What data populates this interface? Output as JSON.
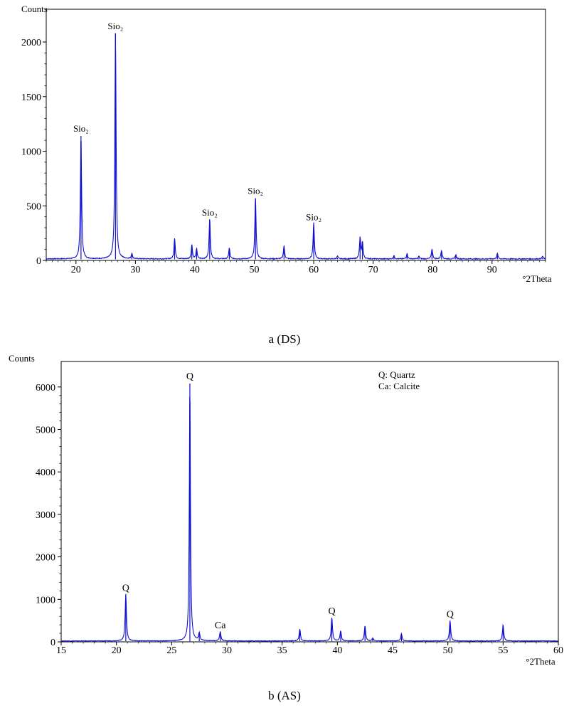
{
  "chart_data": [
    {
      "type": "line",
      "ylabel": "Counts",
      "xlabel": "°2Theta",
      "caption": "a (DS)",
      "xlim": [
        15,
        99
      ],
      "ylim": [
        0,
        2300
      ],
      "xticks": [
        20,
        30,
        40,
        50,
        60,
        70,
        80,
        90
      ],
      "yticks": [
        0,
        500,
        1000,
        1500,
        2000
      ],
      "color": "#1010d0",
      "baseline": 10,
      "peaks": [
        {
          "x": 20.85,
          "y": 1140,
          "w": 0.12
        },
        {
          "x": 26.65,
          "y": 2080,
          "w": 0.12
        },
        {
          "x": 29.4,
          "y": 50,
          "w": 0.12
        },
        {
          "x": 36.6,
          "y": 190,
          "w": 0.12
        },
        {
          "x": 39.5,
          "y": 130,
          "w": 0.12
        },
        {
          "x": 40.3,
          "y": 90,
          "w": 0.12
        },
        {
          "x": 42.5,
          "y": 370,
          "w": 0.12
        },
        {
          "x": 45.8,
          "y": 100,
          "w": 0.12
        },
        {
          "x": 50.2,
          "y": 570,
          "w": 0.12
        },
        {
          "x": 55.0,
          "y": 120,
          "w": 0.12
        },
        {
          "x": 60.0,
          "y": 330,
          "w": 0.12
        },
        {
          "x": 64.0,
          "y": 25,
          "w": 0.12
        },
        {
          "x": 67.8,
          "y": 190,
          "w": 0.12
        },
        {
          "x": 68.2,
          "y": 150,
          "w": 0.12
        },
        {
          "x": 73.5,
          "y": 30,
          "w": 0.12
        },
        {
          "x": 75.7,
          "y": 50,
          "w": 0.12
        },
        {
          "x": 77.7,
          "y": 25,
          "w": 0.12
        },
        {
          "x": 79.9,
          "y": 90,
          "w": 0.12
        },
        {
          "x": 81.5,
          "y": 80,
          "w": 0.12
        },
        {
          "x": 83.9,
          "y": 40,
          "w": 0.12
        },
        {
          "x": 90.9,
          "y": 50,
          "w": 0.12
        },
        {
          "x": 98.5,
          "y": 25,
          "w": 0.12
        }
      ],
      "annotations": [
        {
          "text": "Sio₂",
          "x": 20.85,
          "y": 1140
        },
        {
          "text": "Sio₂",
          "x": 26.65,
          "y": 2080
        },
        {
          "text": "Sio₂",
          "x": 42.5,
          "y": 370
        },
        {
          "text": "Sio₂",
          "x": 50.2,
          "y": 570
        },
        {
          "text": "Sio₂",
          "x": 60.0,
          "y": 330
        }
      ]
    },
    {
      "type": "line",
      "ylabel": "Counts",
      "xlabel": "°2Theta",
      "caption": "b (AS)",
      "xlim": [
        15,
        60
      ],
      "ylim": [
        0,
        6600
      ],
      "xticks": [
        15,
        20,
        25,
        30,
        35,
        40,
        45,
        50,
        55,
        60
      ],
      "yticks": [
        0,
        1000,
        2000,
        3000,
        4000,
        5000,
        6000
      ],
      "color": "#1010d0",
      "baseline": 15,
      "legend": [
        "Q: Quartz",
        "Ca: Calcite"
      ],
      "legend_position": "top-right",
      "peaks": [
        {
          "x": 20.85,
          "y": 1100,
          "w": 0.07
        },
        {
          "x": 26.65,
          "y": 6080,
          "w": 0.06
        },
        {
          "x": 27.5,
          "y": 180,
          "w": 0.07
        },
        {
          "x": 29.4,
          "y": 220,
          "w": 0.07
        },
        {
          "x": 36.6,
          "y": 280,
          "w": 0.07
        },
        {
          "x": 39.5,
          "y": 550,
          "w": 0.07
        },
        {
          "x": 40.3,
          "y": 240,
          "w": 0.07
        },
        {
          "x": 42.5,
          "y": 360,
          "w": 0.07
        },
        {
          "x": 43.2,
          "y": 70,
          "w": 0.07
        },
        {
          "x": 45.8,
          "y": 170,
          "w": 0.07
        },
        {
          "x": 50.2,
          "y": 480,
          "w": 0.07
        },
        {
          "x": 55.0,
          "y": 380,
          "w": 0.07
        }
      ],
      "annotations": [
        {
          "text": "Q",
          "x": 20.85,
          "y": 1100
        },
        {
          "text": "Q",
          "x": 26.65,
          "y": 6080
        },
        {
          "text": "Ca",
          "x": 29.4,
          "y": 220
        },
        {
          "text": "Q",
          "x": 39.5,
          "y": 550
        },
        {
          "text": "Q",
          "x": 50.2,
          "y": 480
        }
      ]
    }
  ]
}
